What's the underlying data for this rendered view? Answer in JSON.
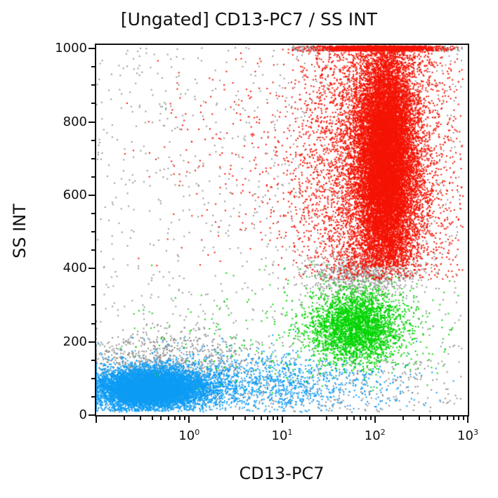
{
  "chart_data": {
    "type": "scatter",
    "title": "[Ungated] CD13-PC7 / SS INT",
    "xlabel": "CD13-PC7",
    "ylabel": "SS INT",
    "x_scale": "log",
    "x_decade_min": -1,
    "x_decade_max": 3,
    "x_tick_label_base": "10",
    "x_tick_exponents": [
      0,
      1,
      2,
      3
    ],
    "y_ticks": [
      0,
      200,
      400,
      600,
      800,
      1000
    ],
    "y_minor_step": 50,
    "ylim": [
      0,
      1010
    ],
    "grid": false,
    "legend": "none",
    "colors": {
      "blue_population": "#0e9cf4",
      "green_population": "#00d400",
      "red_population": "#f41405",
      "gray_population": "#969696",
      "axis": "#111111",
      "background": "#ffffff"
    },
    "seed": 42,
    "dot_size": 2,
    "populations": [
      {
        "name": "gray-debris-scatter",
        "color": "#969696",
        "count": 1100,
        "x": {
          "dist": "uniform",
          "min": -1.0,
          "max": 2.95
        },
        "y": {
          "dist": "uniform",
          "min": 10,
          "max": 1005
        }
      },
      {
        "name": "gray-band-between-green-red",
        "color": "#969696",
        "count": 750,
        "x": {
          "dist": "normal",
          "mean": 1.85,
          "sd": 0.3,
          "min": 0.9,
          "max": 2.75
        },
        "y": {
          "dist": "normal",
          "mean": 383,
          "sd": 32,
          "min": 300,
          "max": 460
        }
      },
      {
        "name": "gray-top-pileup",
        "color": "#969696",
        "count": 320,
        "x": {
          "dist": "uniform",
          "min": 1.1,
          "max": 2.95
        },
        "y": {
          "dist": "uniform",
          "min": 993,
          "max": 1007
        }
      },
      {
        "name": "gray-fringe-above-blue",
        "color": "#8f8f8f",
        "count": 650,
        "x": {
          "dist": "normal",
          "mean": -0.25,
          "sd": 0.5,
          "min": -1.0,
          "max": 1.2,
          "edge": "clamp"
        },
        "y": {
          "dist": "normal",
          "mean": 155,
          "sd": 38,
          "min": 95,
          "max": 260
        }
      },
      {
        "name": "gray-bottom-scatter",
        "color": "#8f8f8f",
        "count": 350,
        "x": {
          "dist": "uniform",
          "min": -1.0,
          "max": 2.8
        },
        "y": {
          "dist": "uniform",
          "min": 10,
          "max": 150
        }
      },
      {
        "name": "blue-lymphocyte-core",
        "color": "#0e9cf4",
        "count": 9000,
        "x": {
          "dist": "normal",
          "mean": -0.42,
          "sd": 0.3,
          "min": -1.0,
          "max": 0.5,
          "edge": "clamp"
        },
        "y": {
          "dist": "normal",
          "mean": 72,
          "sd": 27,
          "min": 10,
          "max": 170
        }
      },
      {
        "name": "blue-tail-right",
        "color": "#0e9cf4",
        "count": 1700,
        "x": {
          "dist": "normal",
          "mean": 0.5,
          "sd": 0.85,
          "min": -1.0,
          "max": 2.9
        },
        "y": {
          "dist": "normal",
          "mean": 85,
          "sd": 45,
          "min": 8,
          "max": 230
        }
      },
      {
        "name": "green-monocyte-core",
        "color": "#00d400",
        "count": 3000,
        "x": {
          "dist": "normal",
          "mean": 1.8,
          "sd": 0.25,
          "min": 0.9,
          "max": 2.7
        },
        "y": {
          "dist": "normal",
          "mean": 242,
          "sd": 50,
          "min": 115,
          "max": 385
        }
      },
      {
        "name": "green-sparse",
        "color": "#00d400",
        "count": 280,
        "x": {
          "dist": "normal",
          "mean": 1.4,
          "sd": 0.9,
          "min": -1.0,
          "max": 2.9
        },
        "y": {
          "dist": "normal",
          "mean": 230,
          "sd": 90,
          "min": 60,
          "max": 420
        }
      },
      {
        "name": "red-granulocyte-halo",
        "color": "#f41405",
        "count": 5200,
        "x": {
          "dist": "normal",
          "mean": 2.02,
          "sd": 0.4,
          "min": 0.6,
          "max": 2.95
        },
        "y": {
          "dist": "normal",
          "mean": 680,
          "sd": 255,
          "min": 370,
          "max": 1007
        }
      },
      {
        "name": "red-granulocyte-core",
        "color": "#f41405",
        "count": 14500,
        "x": {
          "dist": "normal",
          "mean": 2.12,
          "sd": 0.16,
          "min": 1.5,
          "max": 2.7
        },
        "y": {
          "dist": "normal",
          "mean": 690,
          "sd": 160,
          "min": 405,
          "max": 1005
        }
      },
      {
        "name": "red-top-pileup",
        "color": "#f41405",
        "count": 1700,
        "x": {
          "dist": "normal",
          "mean": 2.05,
          "sd": 0.32,
          "min": 1.0,
          "max": 2.9
        },
        "y": {
          "dist": "uniform",
          "min": 994,
          "max": 1007
        }
      },
      {
        "name": "red-left-sparse",
        "color": "#f41405",
        "count": 330,
        "x": {
          "dist": "normal",
          "mean": 1.1,
          "sd": 0.75,
          "min": -0.9,
          "max": 1.9
        },
        "y": {
          "dist": "normal",
          "mean": 760,
          "sd": 190,
          "min": 390,
          "max": 1005
        }
      }
    ]
  },
  "layout_labels": {
    "title": "[Ungated] CD13-PC7 / SS INT",
    "x_axis": "CD13-PC7",
    "y_axis": "SS INT"
  }
}
